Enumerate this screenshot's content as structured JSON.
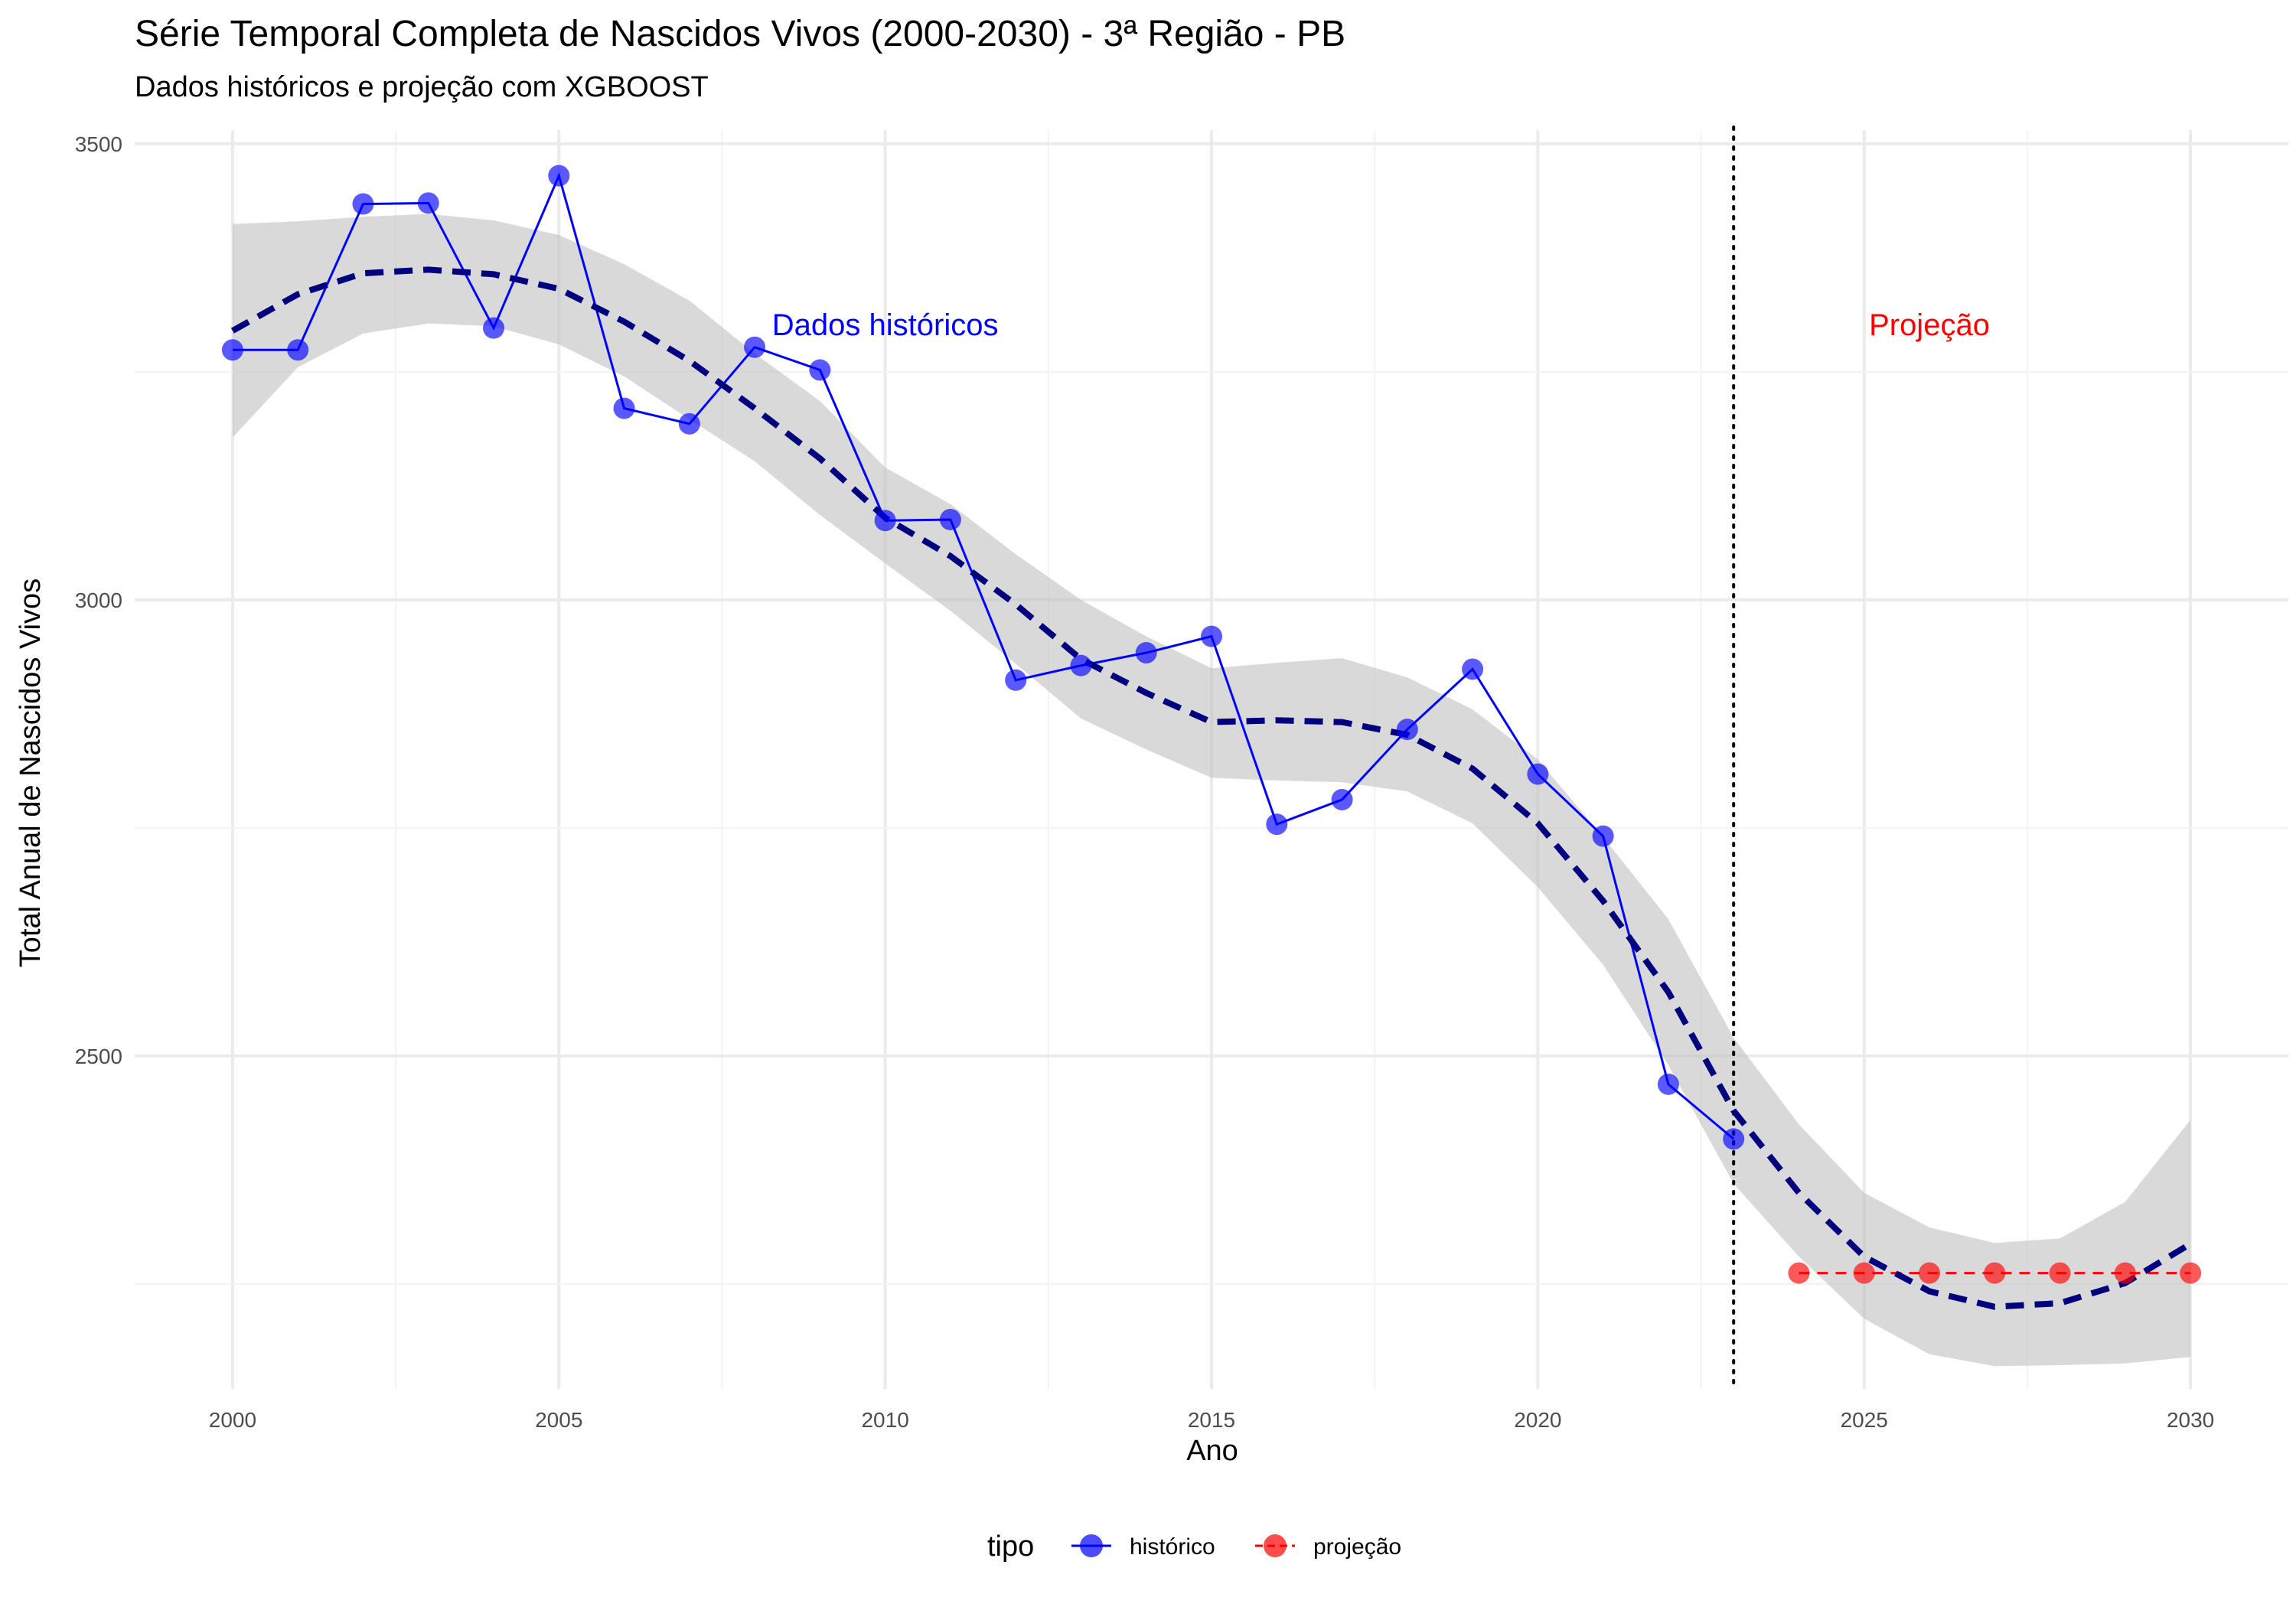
{
  "chart_data": {
    "type": "line",
    "title": "Série Temporal Completa de Nascidos Vivos (2000-2030) -  3ª Região - PB",
    "subtitle": "Dados históricos e projeção com XGBOOST",
    "xlabel": "Ano",
    "ylabel": "Total Anual de Nascidos Vivos",
    "xlim": [
      1998.5,
      2031.5
    ],
    "ylim": [
      2135,
      3515
    ],
    "x_ticks": [
      2000,
      2005,
      2010,
      2015,
      2020,
      2025,
      2030
    ],
    "y_ticks": [
      2500,
      3000,
      3500
    ],
    "grid": true,
    "legend": {
      "title": "tipo",
      "position": "bottom",
      "entries": [
        {
          "label": "histórico",
          "color": "#0000ff"
        },
        {
          "label": "projeção",
          "color": "#ff0000"
        }
      ]
    },
    "series": [
      {
        "name": "histórico",
        "color": "#0000ff",
        "x": [
          2000,
          2001,
          2002,
          2003,
          2004,
          2005,
          2006,
          2007,
          2008,
          2009,
          2010,
          2011,
          2012,
          2013,
          2014,
          2015,
          2016,
          2017,
          2018,
          2019,
          2020,
          2021,
          2022,
          2023
        ],
        "y": [
          3274,
          3274,
          3434,
          3435,
          3298,
          3465,
          3210,
          3193,
          3277,
          3252,
          3087,
          3088,
          2912,
          2928,
          2942,
          2960,
          2754,
          2781,
          2858,
          2924,
          2809,
          2741,
          2469,
          2409
        ]
      },
      {
        "name": "projeção",
        "color": "#ff0000",
        "x": [
          2024,
          2025,
          2026,
          2027,
          2028,
          2029,
          2030
        ],
        "y": [
          2262,
          2262,
          2262,
          2262,
          2262,
          2262,
          2262
        ]
      }
    ],
    "smooth": {
      "color": "#00007f",
      "band_color": "#bfbfbf",
      "x": [
        2000,
        2001,
        2002,
        2003,
        2004,
        2005,
        2006,
        2007,
        2008,
        2009,
        2010,
        2011,
        2012,
        2013,
        2014,
        2015,
        2016,
        2017,
        2018,
        2019,
        2020,
        2021,
        2022,
        2023,
        2024,
        2025,
        2026,
        2027,
        2028,
        2029,
        2030
      ],
      "y": [
        3295,
        3335,
        3358,
        3362,
        3357,
        3341,
        3305,
        3262,
        3210,
        3155,
        3090,
        3048,
        2995,
        2935,
        2898,
        2866,
        2868,
        2866,
        2852,
        2815,
        2755,
        2670,
        2570,
        2440,
        2350,
        2280,
        2242,
        2225,
        2229,
        2251,
        2294
      ],
      "lower": [
        3178,
        3255,
        3292,
        3303,
        3300,
        3280,
        3245,
        3198,
        3152,
        3093,
        3040,
        2988,
        2930,
        2870,
        2836,
        2805,
        2802,
        2800,
        2790,
        2755,
        2685,
        2600,
        2490,
        2360,
        2280,
        2212,
        2173,
        2160,
        2161,
        2163,
        2170
      ],
      "upper": [
        3412,
        3415,
        3420,
        3423,
        3416,
        3400,
        3368,
        3328,
        3270,
        3218,
        3145,
        3105,
        3050,
        3000,
        2960,
        2925,
        2931,
        2936,
        2915,
        2880,
        2825,
        2740,
        2650,
        2520,
        2425,
        2350,
        2312,
        2295,
        2300,
        2340,
        2430
      ]
    },
    "vline": {
      "x": 2023,
      "style": "dotted"
    },
    "annotations": [
      {
        "text": "Dados históricos",
        "x": 2010,
        "y": 3290,
        "color": "#0000ff"
      },
      {
        "text": "Projeção",
        "x": 2026,
        "y": 3290,
        "color": "#ff0000"
      }
    ]
  }
}
